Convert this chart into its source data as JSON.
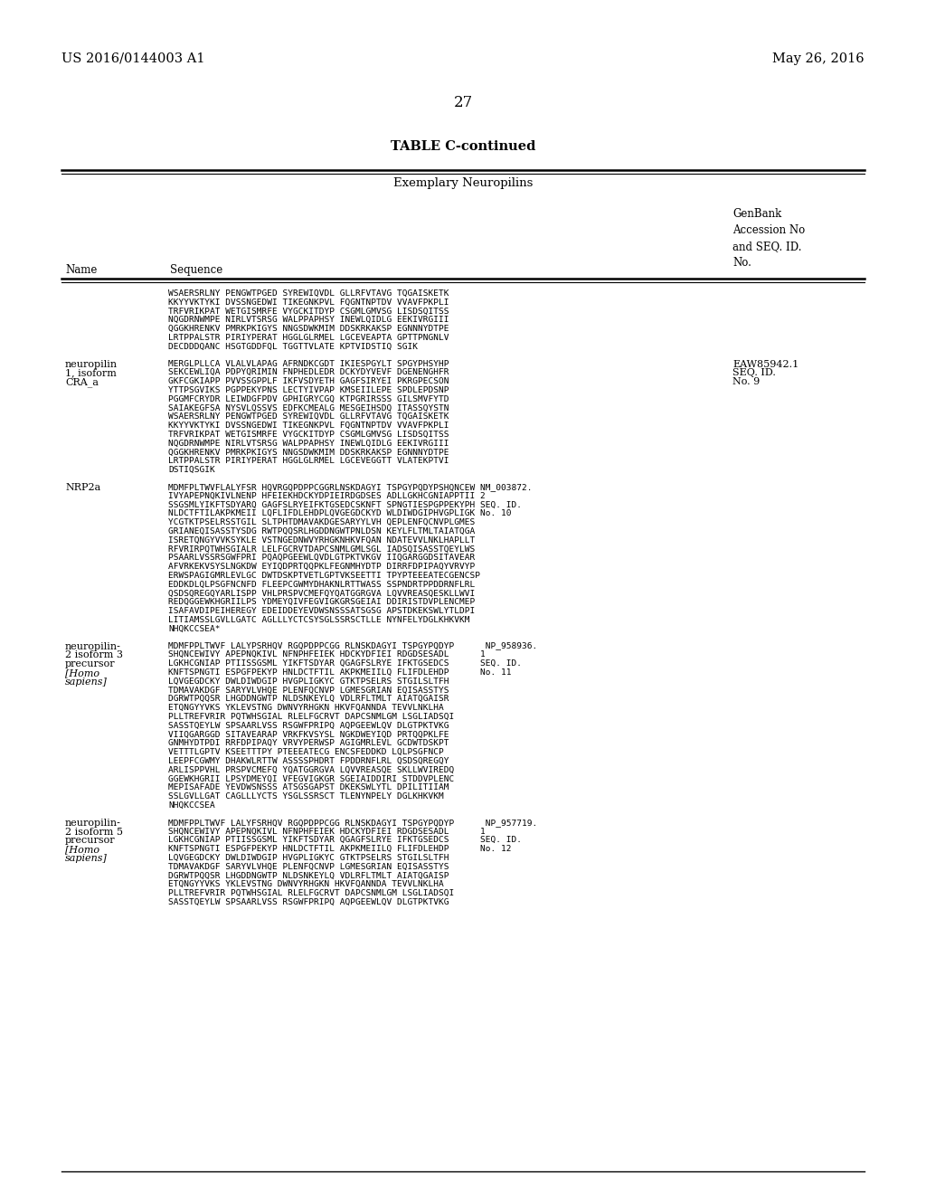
{
  "bg_color": "#ffffff",
  "header_left": "US 2016/0144003 A1",
  "header_right": "May 26, 2016",
  "page_number": "27",
  "table_title": "TABLE C-continued",
  "table_subtitle": "Exemplary Neuropilins",
  "col_headers": {
    "name": "Name",
    "sequence": "Sequence",
    "genbank": "GenBank\nAccession No\nand SEQ. ID.\nNo."
  },
  "entries": [
    {
      "name": "",
      "name_italic": [],
      "seq_lines": [
        "WSAERSRLNY PENGWTPGED SYREWIQVDL GLLRFVTAVG TQGAISKETK",
        "KKYYVKTYKI DVSSNGEDWI TIKEGNKPVL FQGNTNPTDV VVAVFPKPLI",
        "TRFVRIKPAT WETGISMRFE VYGCKITDYP CSGMLGMVSG LISDSQITSS",
        "NQGDRNWMPE NIRLVTSRSG WALPPAPHSY INEWLQIDLG EEKIVRGIII",
        "QGGKHRENKV PMRKPKIGYS NNGSDWKMIM DDSKRKAKSP EGNNNYDTPE",
        "LRTPPALSTR PIRIYPERAT HGGLGLRMEL LGCEVEAPTA GPTTPNGNLV",
        "DECDDDQANC HSGTGDDFQL TGGTTVLATE KPTVIDSTIQ SGIK"
      ],
      "acc_lines": []
    },
    {
      "name": "neuropilin\n1, isoform\nCRA_a",
      "name_italic": [],
      "seq_lines": [
        "MERGLPLLCA VLALVLAPAG AFRNDKCGDT IKIESPGYLT SPGYPHSYHP",
        "SEKCEWLIQA PDPYQRIMIN FNPHEDLEDR DCKYDYVEVF DGENENGHFR",
        "GKFCGKIAPP PVVSSGPPLF IKFVSDYETH GAGFSIRYEI PKRGPECSON",
        "YTTPSGVIKS PGPPEKYPNS LECTYIVPAP KMSEIILEPE SPDLEPDSNP",
        "PGGMFCRYDR LEIWDGFPDV GPHIGRYCGQ KTPGRIRSSS GILSMVFYTD",
        "SAIAKEGFSA NYSVLQSSVS EDFKCMEALG MESGEIHSDQ ITASSQYSTN",
        "WSAERSRLNY PENGWTPGED SYREWIQVDL GLLRFVTAVG TQGAISKETK",
        "KKYYVKTYKI DVSSNGEDWI TIKEGNKPVL FQGNTNPTDV VVAVFPKPLI",
        "TRFVRIKPAT WETGISMRFE VYGCKITDYP CSGMLGMVSG LISDSQITSS",
        "NQGDRNWMPE NIRLVTSRSG WALPPAPHSY INEWLQIDLG EEKIVRGIII",
        "QGGKHRENKV PMRKPKIGYS NNGSDWKMIM DDSKRKAKSP EGNNNYDTPE",
        "LRTPPALSTR PIRIYPERAT HGGLGLRMEL LGCEVEGGTT VLATEKPTVI",
        "DSTIQSGIK"
      ],
      "acc_lines": [
        "EAW85942.1",
        "SEQ. ID.",
        "No. 9"
      ]
    },
    {
      "name": "NRP2a",
      "name_italic": [],
      "seq_lines": [
        "MDMFPLTWVFLALYFSR HQVRGQPDPPCGGRLNSKDAGYI TSPGYPQDYPSHQNCEW NM_003872.",
        "IVYAPEPNQKIVLNENP HFEIEKHDCKYDPIEIRDGDSES ADLLGKHCGNIAPPTII 2",
        "SSGSMLYIKFTSDYARQ GAGFSLRYEIFKTGSEDCSKNFT SPNGTIESPGPPEKYPH SEQ. ID.",
        "NLDCTFTILAKPKMEII LQFLIFDLEHDPLQVGEGDCKYD WLDIWDGIPHVGPLIGK No. 10",
        "YCGTKTPSELRSSTGIL SLTPHTDMAVAKDGESARYYLVH QEPLENFQCNVPLGMES",
        "GRIANEQISASSTYSDG RWTPQQSRLHGDDNGWTPNLDSN KEYLFLTMLTAIATQGA",
        "ISRETQNGYVVKSYKLE VSTNGEDNWVYRHGKNHKVFQAN NDATEVVLNKLHAPLLT",
        "RFVRIRPQTWHSGIALR LELFGCRVTDAPCSNMLGMLSGL IADSQISASSTQEYLWS",
        "PSAARLVSSRSGWFPRI PQAQPGEEWLQVDLGTPKTVKGV IIQGARGGDSITAVEAR",
        "AFVRKEKVSYSLNGKDW EYIQDPRTQQPKLFEGNMHYDTP DIRRFDPIPAQYVRVYP",
        "ERWSPAGIGMRLEVLGC DWTDSKPTVETLGPTVKSEETTI TPYPTEEEATECGENCSP",
        "EDDKDLQLPSGFNCNFD FLEEPCGWMYDHAKNLRTTWASS SSPNDRTPPDDRNFLRL",
        "QSDSQREGQYARLISPP VHLPRSPVCMEFQYQATGGRGVA LQVVREASQESKLLWVI",
        "REDQGGEWKHGRIILPS YDMEYQIVFEGVIGKGRSGEIAI DDIRISTDVPLENCMEP",
        "ISAFAVDIPEIHEREGY EDEIDDEYEVDWSNSSSATSGSG APSTDKEKSWLYTLDPI",
        "LITIAMSSLGVLLGATC AGLLLYCTCSYSGLSSRSCTLLE NYNFELYDGLKHKVKM",
        "NHQKCCSEA*"
      ],
      "acc_lines": []
    },
    {
      "name": "neuropilin-\n2 isoform 3\nprecursor\n[Homo\nsapiens]",
      "name_italic": [
        3,
        4
      ],
      "seq_lines": [
        "MDMFPPLTWVF LALYPSRHQV RGQPDPPCGG RLNSKDAGYI TSPGYPQDYP      NP_958936.",
        "SHQNCEWIVY APEPNQKIVL NFNPHFEIEK HDCKYDFIEI RDGDSESADL      1",
        "LGKHCGNIAP PTIISSGSML YIKFTSDYAR QGAGFSLRYE IFKTGSEDCS      SEQ. ID.",
        "KNFTSPNGTI ESPGFPEKYP HNLDCTFTIL AKPKMEIILQ FLIFDLEHDP      No. 11",
        "LQVGEGDCKY DWLDIWDGIP HVGPLIGKYC GTKTPSELRS STGILSLTFH",
        "TDMAVAKDGF SARYVLVHQE PLENFQCNVP LGMESGRIAN EQISASSTYS",
        "DGRWTPQQSR LHGDDNGWTP NLDSNKEYLQ VDLRFLTMLT AIATQGAISR",
        "ETQNGYYVKS YKLEVSTNG DWNVYRHGKN HKVFQANNDA TEVVLNKLHA",
        "PLLTREFVRIR PQTWHSGIAL RLELFGCRVT DAPCSNMLGM LSGLIADSQI",
        "SASSTQEYLW SPSAARLVSS RSGWFPRIPQ AQPGEEWLQV DLGTPKTVKG",
        "VIIQGARGGD SITAVEARAP VRKFKVSYSL NGKDWEYIQD PRTQQPKLFE",
        "GNMHYDTPDI RRFDPIPAQY VRVYPERWSP AGIGMRLEVL GCDWTDSKPT",
        "VETTTLGPTV KSEETTTPY PTEEEATECG ENCSFEDDKD LQLPSGFNCP",
        "LEEPFCGWMY DHAKWLRTTW ASSSSPHDRT FPDDRNFLRL QSDSQREGQY",
        "ARLISPPVHL PRSPVCMEFQ YQATGGRGVA LQVVREASQE SKLLWVIREDQ",
        "GGEWKHGRII LPSYDMEYQI VFEGVIGKGR SGEIAIDDIRI STDDVPLENC",
        "MEPISAFADE YEVDWSNSSS ATSGSGAPST DKEKSWLYTL DPILITIIAM",
        "SSLGVLLGAT CAGLLLYCTS YSGLSSRSCT TLENYNPELY DGLKHKVKM",
        "NHQKCCSEA"
      ],
      "acc_lines": []
    },
    {
      "name": "neuropilin-\n2 isoform 5\nprecursor\n[Homo\nsapiens]",
      "name_italic": [
        3,
        4
      ],
      "seq_lines": [
        "MDMFPPLTWVF LALYFSRHQV RGQPDPPCGG RLNSKDAGYI TSPGYPQDYP      NP_957719.",
        "SHQNCEWIVY APEPNQKIVL NFNPHFEIEK HDCKYDFIEI RDGDSESADL      1",
        "LGKHCGNIAP PTIISSGSML YIKFTSDYAR QGAGFSLRYE IFKTGSEDCS      SEQ. ID.",
        "KNFTSPNGTI ESPGFPEKYP HNLDCTFTIL AKPKMEIILQ FLIFDLEHDP      No. 12",
        "LQVGEGDCKY DWLDIWDGIP HVGPLIGKYC GTKTPSELRS STGILSLTFH",
        "TDMAVAKDGF SARYVLVHQE PLENFQCNVP LGMESGRIAN EQISASSTYS",
        "DGRWTPQQSR LHGDDNGWTP NLDSNKEYLQ VDLRFLTMLT AIATQGAISP",
        "ETQNGYYVKS YKLEVSTNG DWNVYRHGKN HKVFQANNDA TEVVLNKLHA",
        "PLLTREFVRIR PQTWHSGIAL RLELFGCRVT DAPCSNMLGM LSGLIADSQI",
        "SASSTQEYLW SPSAARLVSS RSGWFPRIPQ AQPGEEWLQV DLGTPKTVKG"
      ],
      "acc_lines": []
    }
  ]
}
